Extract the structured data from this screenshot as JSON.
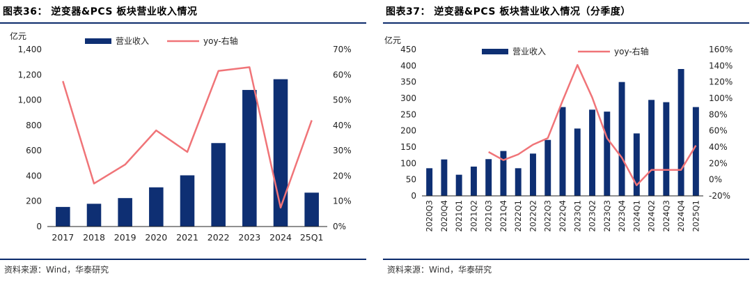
{
  "charts": [
    {
      "title": "图表36：  逆变器&PCS 板块营业收入情况",
      "source": "资料来源：Wind，华泰研究",
      "unit": "亿元"
    },
    {
      "title": "图表37：  逆变器&PCS 板块营业收入情况（分季度）",
      "source": "资料来源：Wind，华泰研究",
      "unit": "亿元"
    }
  ],
  "chart_data": [
    {
      "type": "bar",
      "title": "逆变器&PCS 板块营业收入情况",
      "categories": [
        "2017",
        "2018",
        "2019",
        "2020",
        "2021",
        "2022",
        "2023",
        "2024",
        "25Q1"
      ],
      "series": [
        {
          "name": "营业收入",
          "type": "bar",
          "axis": "left",
          "values": [
            155,
            180,
            225,
            310,
            405,
            660,
            1080,
            1165,
            268
          ]
        },
        {
          "name": "yoy-右轴",
          "type": "line",
          "axis": "right",
          "values": [
            57.5,
            17,
            24.5,
            38,
            29.5,
            61.5,
            63,
            7.5,
            42
          ]
        }
      ],
      "ylabel": "亿元",
      "ylim": [
        0,
        1400
      ],
      "yticks": [
        "0",
        "200",
        "400",
        "600",
        "800",
        "1,000",
        "1,200",
        "1,400"
      ],
      "y2lim": [
        0,
        70
      ],
      "y2ticks": [
        "0%",
        "10%",
        "20%",
        "30%",
        "40%",
        "50%",
        "60%",
        "70%"
      ],
      "legend": "top-center",
      "grid": false,
      "colors": {
        "bar": "#0e2f73",
        "line": "#f07478"
      }
    },
    {
      "type": "bar",
      "title": "逆变器&PCS 板块营业收入情况（分季度）",
      "categories": [
        "2020Q3",
        "2020Q4",
        "2021Q1",
        "2021Q2",
        "2021Q3",
        "2021Q4",
        "2022Q1",
        "2022Q2",
        "2022Q3",
        "2022Q4",
        "2023Q1",
        "2023Q2",
        "2023Q3",
        "2023Q4",
        "2024Q1",
        "2024Q2",
        "2024Q3",
        "2024Q4",
        "2025Q1"
      ],
      "series": [
        {
          "name": "营业收入",
          "type": "bar",
          "axis": "left",
          "values": [
            85,
            112,
            65,
            90,
            113,
            138,
            85,
            130,
            172,
            273,
            207,
            265,
            259,
            350,
            192,
            295,
            288,
            390,
            273
          ]
        },
        {
          "name": "yoy-右轴",
          "type": "line",
          "axis": "right",
          "values": [
            null,
            null,
            null,
            null,
            34,
            24,
            31,
            43,
            51,
            97,
            141,
            101,
            51,
            27,
            -7,
            12,
            12,
            12,
            42
          ]
        }
      ],
      "ylabel": "亿元",
      "ylim": [
        0,
        450
      ],
      "yticks": [
        "0",
        "50",
        "100",
        "150",
        "200",
        "250",
        "300",
        "350",
        "400",
        "450"
      ],
      "y2lim": [
        -20,
        160
      ],
      "y2ticks": [
        "-20%",
        "0%",
        "20%",
        "40%",
        "60%",
        "80%",
        "100%",
        "120%",
        "140%",
        "160%"
      ],
      "legend": "top-center",
      "grid": false,
      "colors": {
        "bar": "#0e2f73",
        "line": "#f07478"
      }
    }
  ]
}
